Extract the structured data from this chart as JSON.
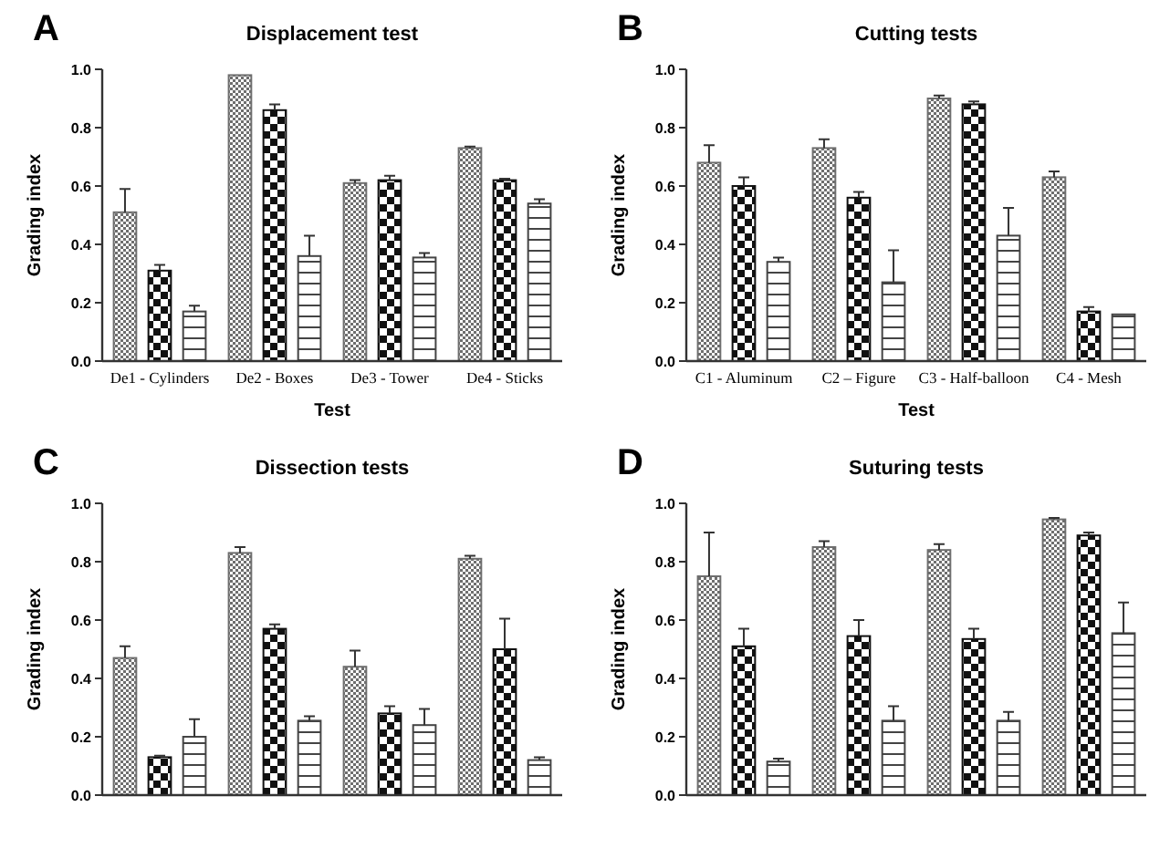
{
  "chart_data": [
    {
      "type": "bar",
      "title": "Displacement test",
      "xlabel": "Test",
      "ylabel": "Grading index",
      "annotations": [
        "A"
      ],
      "categories": [
        "De1 - Cylinders",
        "De2 - Boxes",
        "De3 - Tower",
        "De4 - Sticks"
      ],
      "ylim": [
        0,
        1
      ],
      "yticks": [
        {
          "value": 0,
          "label": "0.0"
        },
        {
          "value": 0.2,
          "label": "0.2"
        },
        {
          "value": 0.4,
          "label": "0.4"
        },
        {
          "value": 0.6,
          "label": "0.6"
        },
        {
          "value": 0.8,
          "label": "0.8"
        },
        {
          "value": 1,
          "label": "1.0"
        }
      ],
      "grid": false,
      "series": [
        {
          "color": "#6e6e6e",
          "values": [
            0.51,
            0.98,
            0.61,
            0.73
          ],
          "errors": [
            0.08,
            null,
            0.01,
            0.005
          ]
        },
        {
          "color": "#111111",
          "values": [
            0.31,
            0.86,
            0.62,
            0.62
          ],
          "errors": [
            0.02,
            0.02,
            0.015,
            0.005
          ]
        },
        {
          "color": "#444444",
          "values": [
            0.17,
            0.36,
            0.355,
            0.54
          ],
          "errors": [
            0.02,
            0.07,
            0.015,
            0.015
          ]
        }
      ]
    },
    {
      "type": "bar",
      "title": "Cutting tests",
      "xlabel": "Test",
      "ylabel": "Grading index",
      "annotations": [
        "B"
      ],
      "categories": [
        "C1 - Aluminum",
        "C2 – Figure",
        "C3 - Half-balloon",
        "C4 - Mesh"
      ],
      "ylim": [
        0,
        1
      ],
      "yticks": [
        {
          "value": 0,
          "label": "0.0"
        },
        {
          "value": 0.2,
          "label": "0.2"
        },
        {
          "value": 0.4,
          "label": "0.4"
        },
        {
          "value": 0.6,
          "label": "0.6"
        },
        {
          "value": 0.8,
          "label": "0.8"
        },
        {
          "value": 1,
          "label": "1.0"
        }
      ],
      "grid": false,
      "series": [
        {
          "color": "#6e6e6e",
          "values": [
            0.68,
            0.73,
            0.9,
            0.63
          ],
          "errors": [
            0.06,
            0.03,
            0.01,
            0.02
          ]
        },
        {
          "color": "#111111",
          "values": [
            0.6,
            0.56,
            0.88,
            0.17
          ],
          "errors": [
            0.03,
            0.02,
            0.01,
            0.015
          ]
        },
        {
          "color": "#444444",
          "values": [
            0.34,
            0.27,
            0.43,
            0.16
          ],
          "errors": [
            0.015,
            0.11,
            0.095,
            null
          ]
        }
      ]
    },
    {
      "type": "bar",
      "title": "Dissection tests",
      "ylabel": "Grading index",
      "annotations": [
        "C"
      ],
      "categories": [
        null,
        null,
        null,
        null
      ],
      "ylim": [
        0,
        1
      ],
      "yticks": [
        {
          "value": 0,
          "label": "0.0"
        },
        {
          "value": 0.2,
          "label": "0.2"
        },
        {
          "value": 0.4,
          "label": "0.4"
        },
        {
          "value": 0.6,
          "label": "0.6"
        },
        {
          "value": 0.8,
          "label": "0.8"
        },
        {
          "value": 1,
          "label": "1.0"
        }
      ],
      "grid": false,
      "series": [
        {
          "color": "#6e6e6e",
          "values": [
            0.47,
            0.83,
            0.44,
            0.81
          ],
          "errors": [
            0.04,
            0.02,
            0.055,
            0.01
          ]
        },
        {
          "color": "#111111",
          "values": [
            0.13,
            0.57,
            0.28,
            0.5
          ],
          "errors": [
            0.005,
            0.015,
            0.025,
            0.105
          ]
        },
        {
          "color": "#444444",
          "values": [
            0.2,
            0.255,
            0.24,
            0.12
          ],
          "errors": [
            0.06,
            0.015,
            0.055,
            0.01
          ]
        }
      ]
    },
    {
      "type": "bar",
      "title": "Suturing tests",
      "ylabel": "Grading index",
      "annotations": [
        "D"
      ],
      "categories": [
        null,
        null,
        null,
        null
      ],
      "ylim": [
        0,
        1
      ],
      "yticks": [
        {
          "value": 0,
          "label": "0.0"
        },
        {
          "value": 0.2,
          "label": "0.2"
        },
        {
          "value": 0.4,
          "label": "0.4"
        },
        {
          "value": 0.6,
          "label": "0.6"
        },
        {
          "value": 0.8,
          "label": "0.8"
        },
        {
          "value": 1,
          "label": "1.0"
        }
      ],
      "grid": false,
      "series": [
        {
          "color": "#6e6e6e",
          "values": [
            0.75,
            0.85,
            0.84,
            0.945
          ],
          "errors": [
            0.15,
            0.02,
            0.02,
            0.005
          ]
        },
        {
          "color": "#111111",
          "values": [
            0.51,
            0.545,
            0.535,
            0.89
          ],
          "errors": [
            0.06,
            0.055,
            0.035,
            0.01
          ]
        },
        {
          "color": "#444444",
          "values": [
            0.115,
            0.255,
            0.255,
            0.555
          ],
          "errors": [
            0.01,
            0.05,
            0.03,
            0.105
          ]
        }
      ]
    }
  ]
}
